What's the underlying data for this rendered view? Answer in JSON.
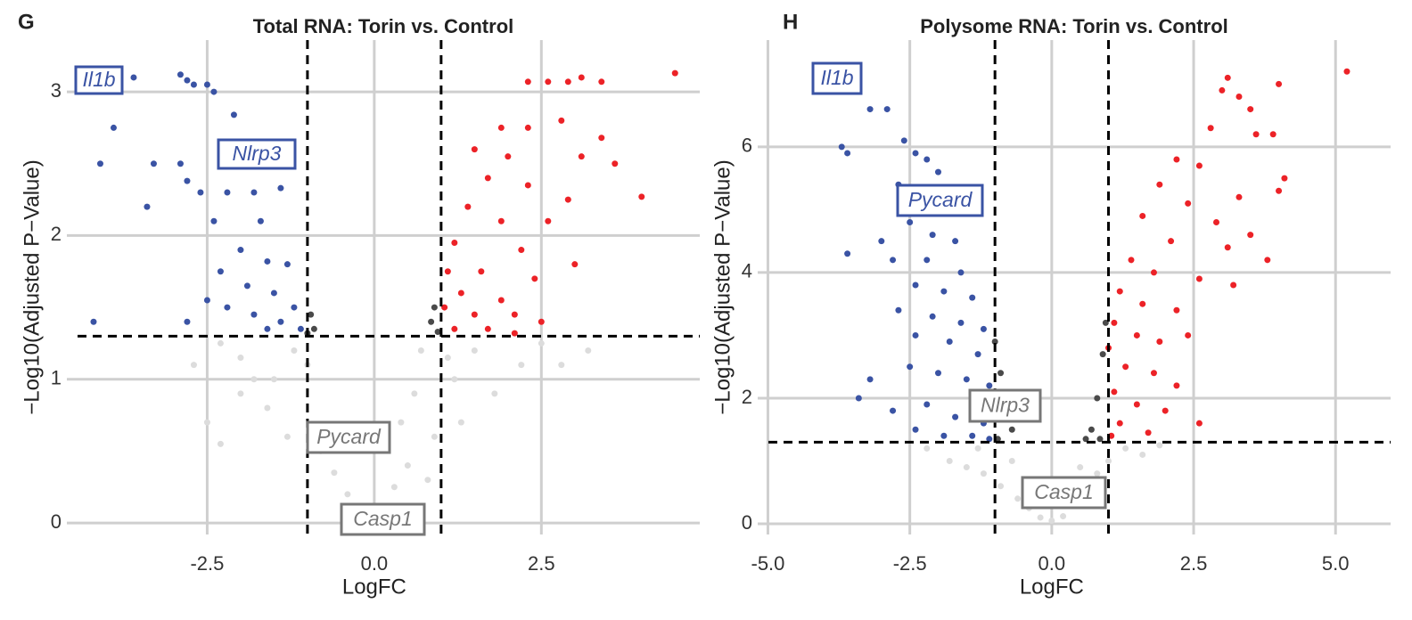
{
  "chart_data": [
    {
      "type": "scatter",
      "panel": "G",
      "title": "Total RNA: Torin vs. Control",
      "x_label": "LogFC",
      "y_label": "−Log10(Adjusted P−Value)",
      "xlim": [
        -4.6,
        4.87
      ],
      "ylim": [
        -0.08,
        3.36
      ],
      "xticks": [
        -2.5,
        {
          "value": 0,
          "label": "0.0"
        },
        2.5
      ],
      "yticks": [
        0,
        1,
        2,
        3
      ],
      "grid": true,
      "vlines": [
        -1,
        1
      ],
      "hline": 1.3,
      "series": [
        {
          "color": "#dcdcdc",
          "x": [
            -2.3,
            -2.0,
            -1.8,
            -2.0,
            -1.6,
            -1.2,
            -1.0,
            -1.3,
            -0.8,
            -0.6,
            -0.4,
            -0.2,
            0,
            0.15,
            0.3,
            0.5,
            0.4,
            0.6,
            0.7,
            0.9,
            1.2,
            1.5,
            1.8,
            2.2,
            2.5,
            1.3,
            -1.5,
            -2.5,
            -2.3,
            0.8,
            -0.5,
            1.1,
            -2.7,
            2.8,
            3.2
          ],
          "values": [
            1.25,
            1.15,
            1.0,
            0.9,
            0.8,
            1.2,
            1.1,
            0.6,
            0.5,
            0.35,
            0.2,
            0.08,
            0.03,
            0.1,
            0.25,
            0.4,
            0.7,
            0.9,
            1.2,
            0.6,
            1.0,
            1.2,
            0.9,
            1.1,
            1.25,
            0.7,
            1.0,
            0.7,
            0.55,
            0.3,
            0.6,
            1.15,
            1.1,
            1.1,
            1.2
          ]
        },
        {
          "color": "#4a4a4a",
          "x": [
            -0.95,
            -0.9,
            -1.0,
            0.9,
            0.85,
            0.95
          ],
          "values": [
            1.45,
            1.35,
            1.32,
            1.5,
            1.4,
            1.33
          ]
        },
        {
          "color": "#3a53a4",
          "x": [
            -3.6,
            -2.9,
            -2.8,
            -2.7,
            -2.5,
            -2.4,
            -3.9,
            -2.1,
            -4.1,
            -3.3,
            -2.9,
            -2.8,
            -2.6,
            -2.2,
            -1.8,
            -1.4,
            -3.4,
            -2.4,
            -1.7,
            -2.0,
            -1.6,
            -2.3,
            -1.3,
            -1.9,
            -1.5,
            -2.5,
            -1.2,
            -2.2,
            -1.8,
            -1.4,
            -4.2,
            -2.8,
            -1.1,
            -1.6
          ],
          "values": [
            3.1,
            3.12,
            3.08,
            3.05,
            3.05,
            3.0,
            2.75,
            2.84,
            2.5,
            2.5,
            2.5,
            2.38,
            2.3,
            2.3,
            2.3,
            2.33,
            2.2,
            2.1,
            2.1,
            1.9,
            1.82,
            1.75,
            1.8,
            1.65,
            1.6,
            1.55,
            1.5,
            1.5,
            1.45,
            1.4,
            1.4,
            1.4,
            1.35,
            1.35
          ]
        },
        {
          "color": "#ec2227",
          "x": [
            4.5,
            2.3,
            2.6,
            2.9,
            3.4,
            3.1,
            1.9,
            2.3,
            2.8,
            3.4,
            1.5,
            2.0,
            3.1,
            3.6,
            1.7,
            2.3,
            4.0,
            1.4,
            2.9,
            1.9,
            2.6,
            1.2,
            2.2,
            3.0,
            1.1,
            1.6,
            2.4,
            1.3,
            1.9,
            1.05,
            1.5,
            2.1,
            2.5,
            1.2,
            1.7,
            2.1
          ],
          "values": [
            3.13,
            3.07,
            3.07,
            3.07,
            3.07,
            3.1,
            2.75,
            2.75,
            2.8,
            2.68,
            2.6,
            2.55,
            2.55,
            2.5,
            2.4,
            2.35,
            2.27,
            2.2,
            2.25,
            2.1,
            2.1,
            1.95,
            1.9,
            1.8,
            1.75,
            1.75,
            1.7,
            1.6,
            1.55,
            1.5,
            1.45,
            1.45,
            1.4,
            1.35,
            1.35,
            1.32
          ]
        }
      ],
      "annotations": [
        {
          "text": "Il1b",
          "color": "#3a53a4"
        },
        {
          "text": "Nlrp3",
          "color": "#3a53a4"
        },
        {
          "text": "Pycard",
          "color": "#777777"
        },
        {
          "text": "Casp1",
          "color": "#777777"
        }
      ]
    },
    {
      "type": "scatter",
      "panel": "H",
      "title": "Polysome RNA: Torin vs. Control",
      "x_label": "LogFC",
      "y_label": "−Log10(Adjusted P−Value)",
      "xlim": [
        -5.18,
        5.97
      ],
      "ylim": [
        -0.17,
        7.7
      ],
      "xticks": [
        {
          "value": -5,
          "label": "-5.0"
        },
        -2.5,
        {
          "value": 0,
          "label": "0.0"
        },
        2.5,
        {
          "value": 5,
          "label": "5.0"
        }
      ],
      "yticks": [
        0,
        2,
        4,
        6
      ],
      "grid": true,
      "vlines": [
        -1,
        1
      ],
      "hline": 1.3,
      "series": [
        {
          "color": "#dcdcdc",
          "x": [
            -2.2,
            -1.8,
            -1.5,
            -1.2,
            -0.9,
            -0.6,
            -0.4,
            -0.2,
            0,
            0.2,
            0.4,
            0.6,
            0.8,
            1.0,
            1.3,
            1.6,
            -1.3,
            -0.7,
            0.5,
            1.9
          ],
          "values": [
            1.2,
            1.0,
            0.9,
            0.8,
            0.6,
            0.4,
            0.25,
            0.1,
            0.05,
            0.12,
            0.3,
            0.5,
            0.8,
            1.0,
            1.2,
            1.1,
            1.2,
            1.0,
            0.9,
            1.25
          ]
        },
        {
          "color": "#4a4a4a",
          "x": [
            -0.9,
            -0.8,
            -1.0,
            -0.7,
            -0.95,
            0.7,
            0.8,
            0.9,
            0.95,
            0.85,
            0.6
          ],
          "values": [
            2.4,
            1.9,
            2.9,
            1.5,
            1.35,
            1.5,
            2.0,
            2.7,
            3.2,
            1.35,
            1.35
          ]
        },
        {
          "color": "#3a53a4",
          "x": [
            -3.7,
            -3.6,
            -3.2,
            -2.9,
            -2.6,
            -2.4,
            -2.2,
            -2.0,
            -2.7,
            -2.3,
            -1.9,
            -2.5,
            -2.1,
            -1.7,
            -3.0,
            -3.6,
            -2.8,
            -2.2,
            -1.6,
            -2.4,
            -1.9,
            -1.4,
            -2.7,
            -2.1,
            -1.6,
            -1.2,
            -2.4,
            -1.8,
            -1.3,
            -3.2,
            -2.5,
            -2.0,
            -1.5,
            -1.1,
            -3.4,
            -2.8,
            -2.2,
            -1.7,
            -1.2,
            -2.4,
            -1.9,
            -1.4,
            -1.1
          ],
          "values": [
            6.0,
            5.9,
            6.6,
            6.6,
            6.1,
            5.9,
            5.8,
            5.6,
            5.4,
            5.2,
            5.0,
            4.8,
            4.6,
            4.5,
            4.5,
            4.3,
            4.2,
            4.2,
            4.0,
            3.8,
            3.7,
            3.6,
            3.4,
            3.3,
            3.2,
            3.1,
            3.0,
            2.9,
            2.7,
            2.3,
            2.5,
            2.4,
            2.3,
            2.2,
            2.0,
            1.8,
            1.9,
            1.7,
            1.6,
            1.5,
            1.4,
            1.4,
            1.35
          ]
        },
        {
          "color": "#ec2227",
          "x": [
            5.2,
            3.1,
            3.0,
            3.3,
            4.0,
            3.5,
            4.1,
            2.8,
            3.6,
            3.9,
            2.2,
            2.6,
            3.3,
            4.0,
            1.9,
            2.4,
            2.9,
            3.5,
            1.6,
            2.1,
            3.1,
            3.8,
            1.4,
            1.8,
            2.6,
            3.2,
            1.2,
            1.6,
            2.2,
            1.1,
            1.5,
            1.9,
            2.4,
            1.0,
            1.3,
            1.8,
            2.2,
            1.1,
            1.5,
            2.0,
            2.6,
            1.2,
            1.7,
            1.05
          ],
          "values": [
            7.2,
            7.1,
            6.9,
            6.8,
            7.0,
            6.6,
            5.5,
            6.3,
            6.2,
            6.2,
            5.8,
            5.7,
            5.2,
            5.3,
            5.4,
            5.1,
            4.8,
            4.6,
            4.9,
            4.5,
            4.4,
            4.2,
            4.2,
            4.0,
            3.9,
            3.8,
            3.7,
            3.5,
            3.4,
            3.2,
            3.0,
            2.9,
            3.0,
            2.8,
            2.5,
            2.4,
            2.2,
            2.1,
            1.9,
            1.8,
            1.6,
            1.6,
            1.45,
            1.4
          ]
        }
      ],
      "annotations": [
        {
          "text": "Il1b",
          "color": "#3a53a4"
        },
        {
          "text": "Pycard",
          "color": "#3a53a4"
        },
        {
          "text": "Nlrp3",
          "color": "#777777"
        },
        {
          "text": "Casp1",
          "color": "#777777"
        }
      ]
    }
  ]
}
